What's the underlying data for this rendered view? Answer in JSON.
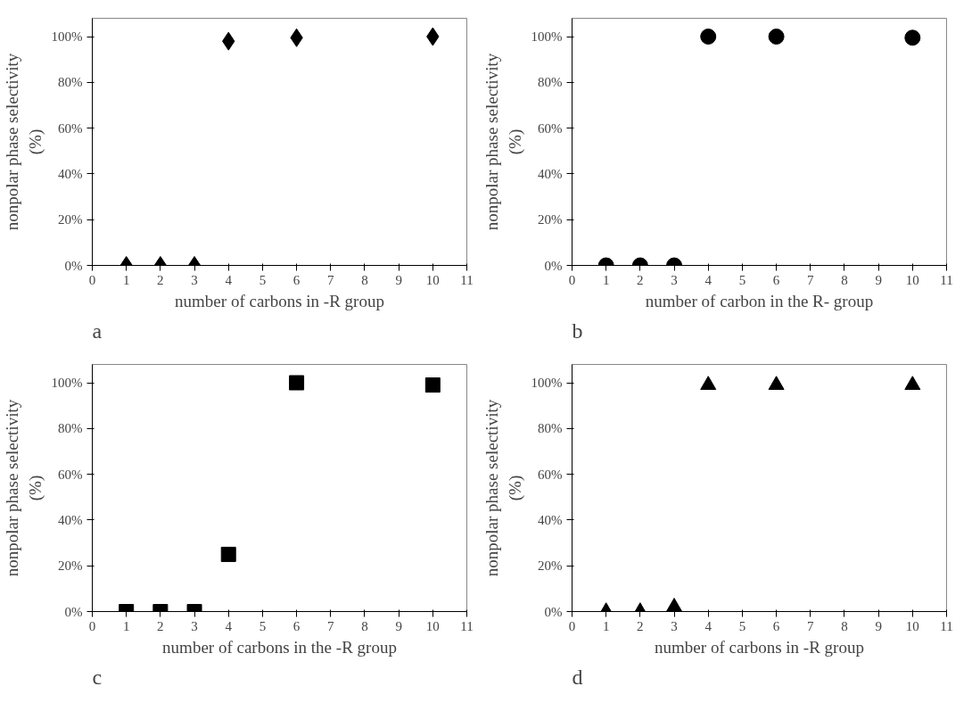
{
  "chart_data": [
    {
      "type": "scatter",
      "x": [
        1,
        2,
        3,
        4,
        6,
        10
      ],
      "values": [
        0,
        0,
        0,
        98,
        99.5,
        100
      ],
      "color": "#000000",
      "marker": "diamond",
      "xlabel": "number of carbons in -R group",
      "ylabel": "nonpolar phase selectivity\n(%)",
      "xlim": [
        0,
        11
      ],
      "xticks": [
        0,
        1,
        2,
        3,
        4,
        5,
        6,
        7,
        8,
        9,
        10,
        11
      ],
      "ylim": [
        0,
        108
      ],
      "yticks": [
        {
          "value": 0,
          "label": "0%"
        },
        {
          "value": 20,
          "label": "20%"
        },
        {
          "value": 40,
          "label": "40%"
        },
        {
          "value": 60,
          "label": "60%"
        },
        {
          "value": 80,
          "label": "80%"
        },
        {
          "value": 100,
          "label": "100%"
        }
      ],
      "grid": false,
      "annotations": [
        "a"
      ]
    },
    {
      "type": "scatter",
      "x": [
        1,
        2,
        3,
        4,
        6,
        10
      ],
      "values": [
        0,
        0,
        0,
        100,
        100,
        99.5
      ],
      "color": "#000000",
      "marker": "circle",
      "xlabel": "number of carbon in the R- group",
      "ylabel": "nonpolar phase selectivity\n(%)",
      "xlim": [
        0,
        11
      ],
      "xticks": [
        0,
        1,
        2,
        3,
        4,
        5,
        6,
        7,
        8,
        9,
        10,
        11
      ],
      "ylim": [
        0,
        108
      ],
      "yticks": [
        {
          "value": 0,
          "label": "0%"
        },
        {
          "value": 20,
          "label": "20%"
        },
        {
          "value": 40,
          "label": "40%"
        },
        {
          "value": 60,
          "label": "60%"
        },
        {
          "value": 80,
          "label": "80%"
        },
        {
          "value": 100,
          "label": "100%"
        }
      ],
      "grid": false,
      "annotations": [
        "b"
      ]
    },
    {
      "type": "scatter",
      "x": [
        1,
        2,
        3,
        4,
        6,
        10
      ],
      "values": [
        0,
        0,
        0,
        25,
        100,
        99
      ],
      "color": "#000000",
      "marker": "square",
      "xlabel": "number of carbons in the -R group",
      "ylabel": "nonpolar phase selectivity\n(%)",
      "xlim": [
        0,
        11
      ],
      "xticks": [
        0,
        1,
        2,
        3,
        4,
        5,
        6,
        7,
        8,
        9,
        10,
        11
      ],
      "ylim": [
        0,
        108
      ],
      "yticks": [
        {
          "value": 0,
          "label": "0%"
        },
        {
          "value": 20,
          "label": "20%"
        },
        {
          "value": 40,
          "label": "40%"
        },
        {
          "value": 60,
          "label": "60%"
        },
        {
          "value": 80,
          "label": "80%"
        },
        {
          "value": 100,
          "label": "100%"
        }
      ],
      "grid": false,
      "annotations": [
        "c"
      ]
    },
    {
      "type": "scatter",
      "x": [
        1,
        2,
        3,
        4,
        6,
        10
      ],
      "values": [
        0,
        0,
        2,
        99,
        99,
        99
      ],
      "color": "#000000",
      "marker": "triangle",
      "xlabel": "number of carbons in -R group",
      "ylabel": "nonpolar phase selectivity\n(%)",
      "xlim": [
        0,
        11
      ],
      "xticks": [
        0,
        1,
        2,
        3,
        4,
        5,
        6,
        7,
        8,
        9,
        10,
        11
      ],
      "ylim": [
        0,
        108
      ],
      "yticks": [
        {
          "value": 0,
          "label": "0%"
        },
        {
          "value": 20,
          "label": "20%"
        },
        {
          "value": 40,
          "label": "40%"
        },
        {
          "value": 60,
          "label": "60%"
        },
        {
          "value": 80,
          "label": "80%"
        },
        {
          "value": 100,
          "label": "100%"
        }
      ],
      "grid": false,
      "annotations": [
        "d"
      ]
    }
  ]
}
